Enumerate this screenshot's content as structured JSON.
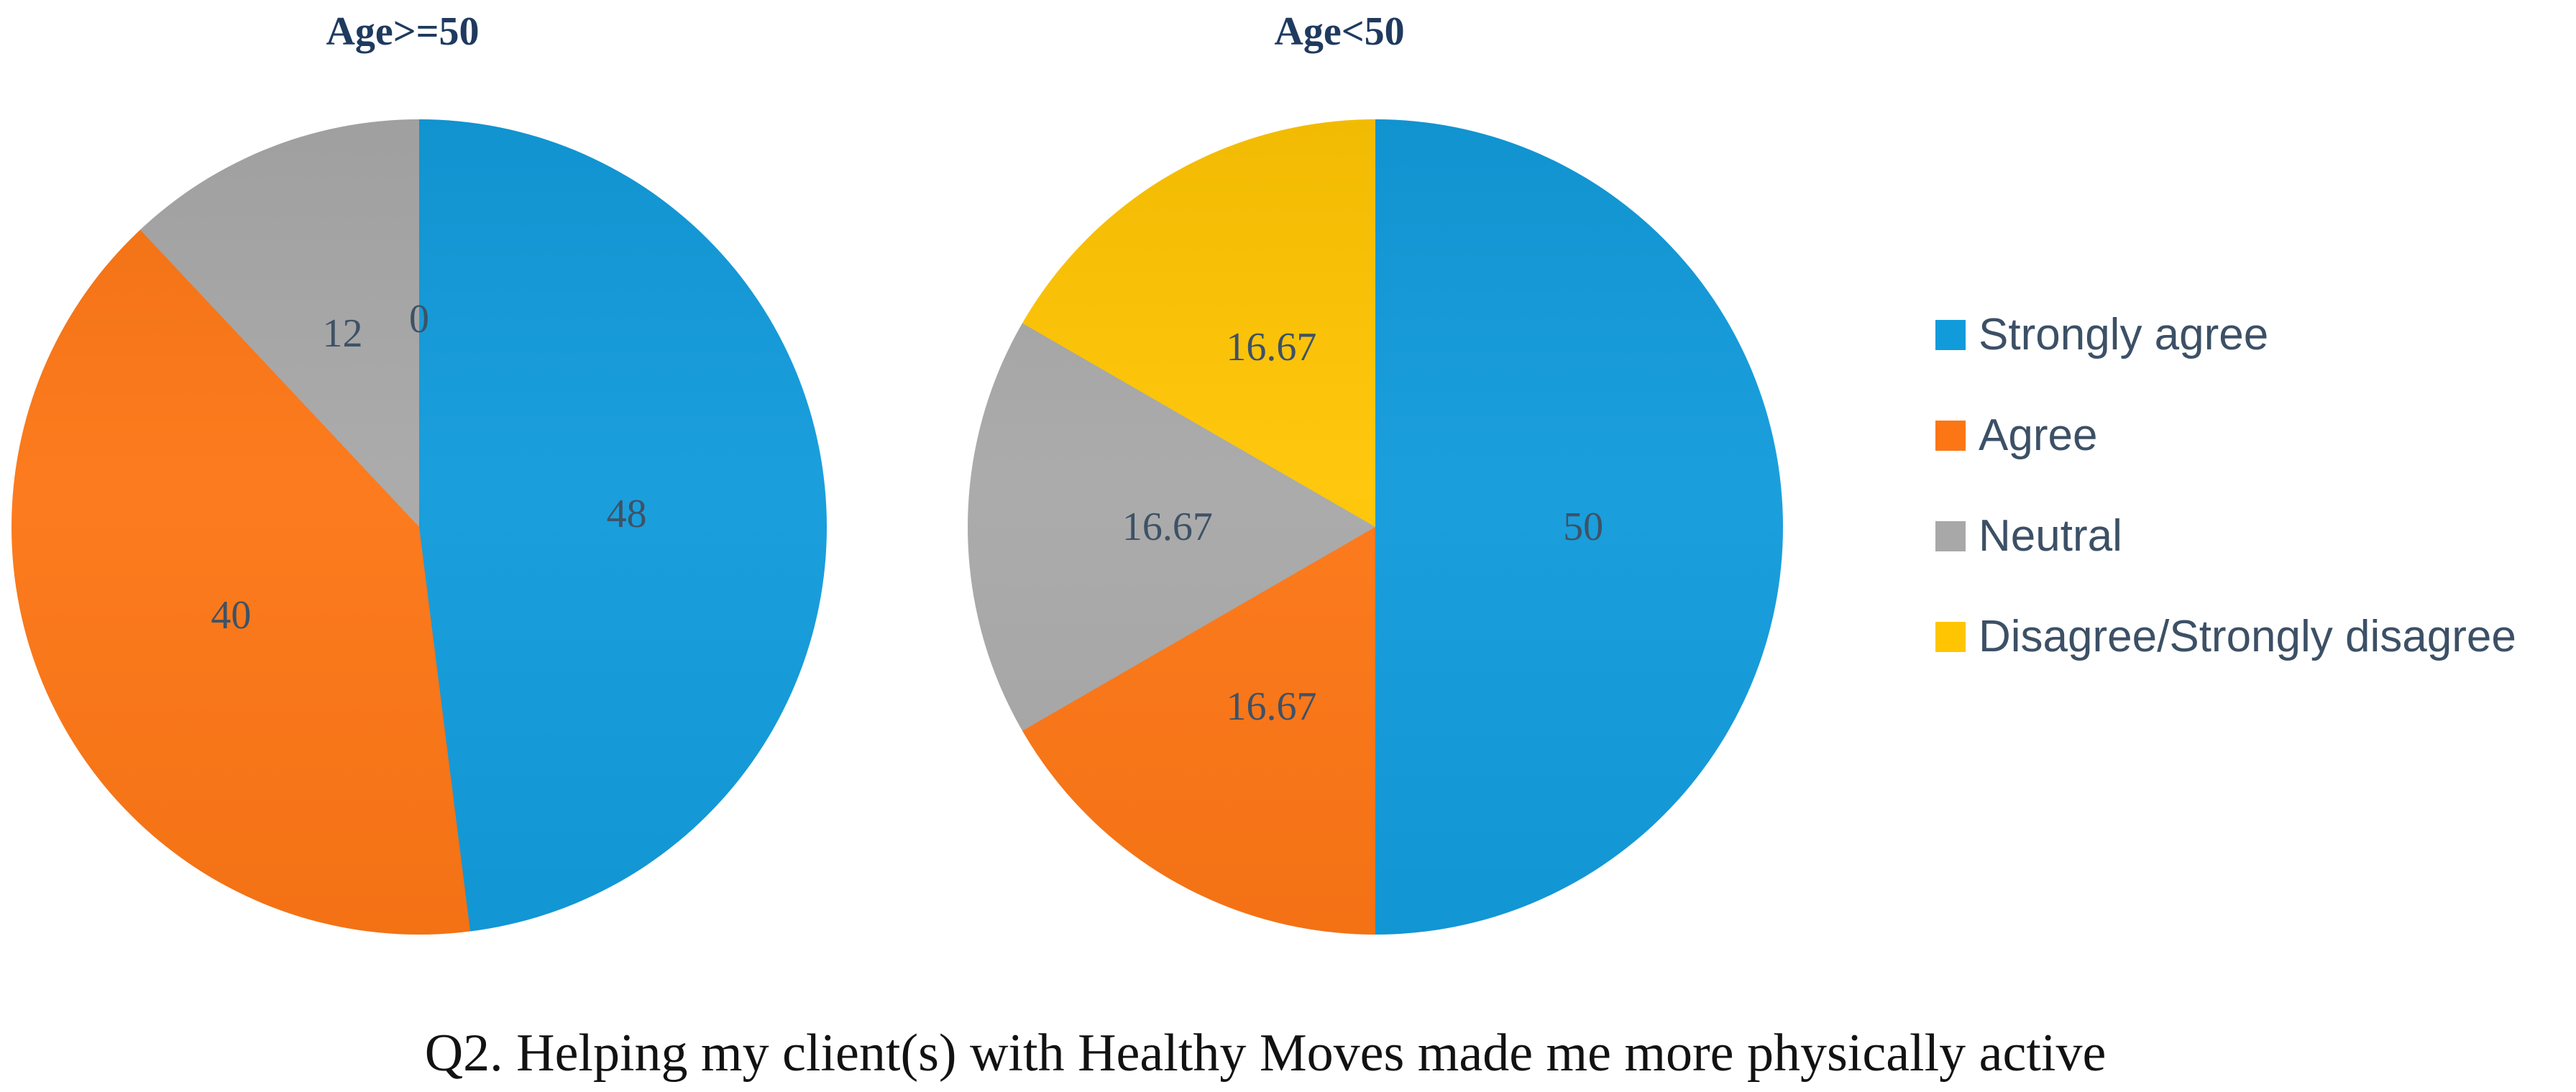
{
  "caption": "Q2. Helping my client(s) with Healthy Moves made me more physically active",
  "colors": {
    "strongly_agree": "#129BDB",
    "agree": "#FC7615",
    "neutral": "#A8A8A8",
    "disagree": "#FFC503",
    "title_text": "#1F3A5F",
    "label_text": "#3E5266",
    "legend_text": "#3C5066"
  },
  "legend": {
    "position": "right",
    "items": [
      {
        "label": "Strongly agree",
        "color": "#129BDB"
      },
      {
        "label": "Agree",
        "color": "#FC7615"
      },
      {
        "label": "Neutral",
        "color": "#A8A8A8"
      },
      {
        "label": "Disagree/Strongly disagree",
        "color": "#FFC503"
      }
    ]
  },
  "chart_data": [
    {
      "type": "pie",
      "title": "Age>=50",
      "categories": [
        "Strongly agree",
        "Agree",
        "Neutral",
        "Disagree/Strongly disagree"
      ],
      "values": [
        48,
        40,
        12,
        0
      ],
      "value_labels": [
        "48",
        "40",
        "12",
        "0"
      ],
      "colors": [
        "#129BDB",
        "#FC7615",
        "#A8A8A8",
        "#FFC503"
      ],
      "units": "percent",
      "start_angle_deg": 0,
      "direction": "clockwise",
      "label_radius_fraction": 0.51
    },
    {
      "type": "pie",
      "title": "Age<50",
      "categories": [
        "Strongly agree",
        "Agree",
        "Neutral",
        "Disagree/Strongly disagree"
      ],
      "values": [
        50,
        16.67,
        16.67,
        16.67
      ],
      "value_labels": [
        "50",
        "16.67",
        "16.67",
        "16.67"
      ],
      "colors": [
        "#129BDB",
        "#FC7615",
        "#A8A8A8",
        "#FFC503"
      ],
      "units": "percent",
      "start_angle_deg": 0,
      "direction": "clockwise",
      "label_radius_fraction": 0.51
    }
  ]
}
